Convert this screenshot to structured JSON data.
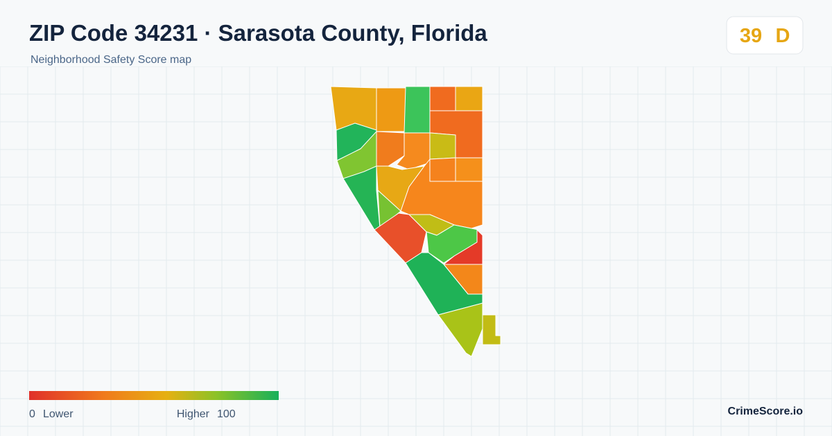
{
  "header": {
    "title": "ZIP Code 34231 · Sarasota County, Florida",
    "subtitle": "Neighborhood Safety Score map"
  },
  "score": {
    "value": 39,
    "grade": "D"
  },
  "legend": {
    "min": 0,
    "min_label": "Lower",
    "max_label": "Higher",
    "max": 100
  },
  "brand": "CrimeScore.io"
}
